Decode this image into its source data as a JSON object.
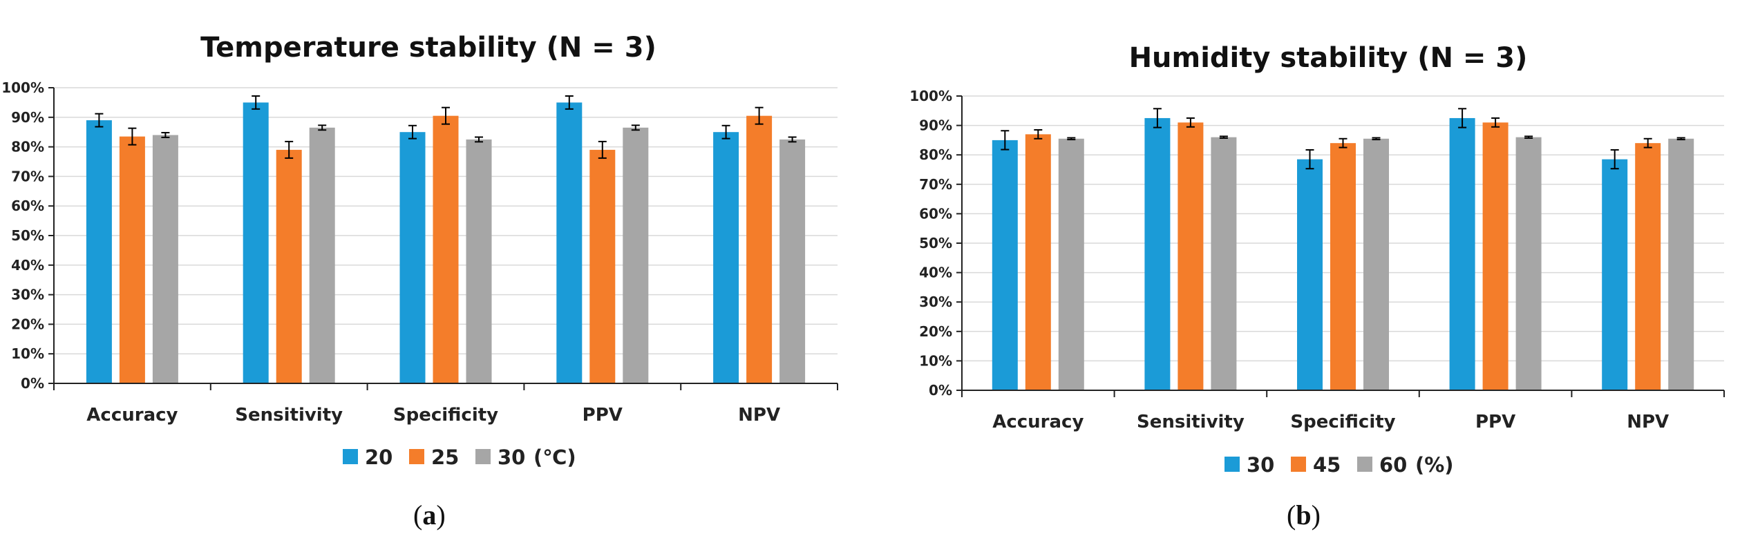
{
  "chart_data": [
    {
      "type": "bar",
      "panel_label": "a",
      "title": "Temperature stability (N = 3)",
      "categories": [
        "Accuracy",
        "Sensitivity",
        "Specificity",
        "PPV",
        "NPV"
      ],
      "series": [
        {
          "name": "20",
          "color": "#1B9BD7",
          "values": [
            89,
            95,
            85,
            95,
            85
          ],
          "errors": [
            2.2,
            2.2,
            2.2,
            2.2,
            2.2
          ]
        },
        {
          "name": "25",
          "color": "#F47D2A",
          "values": [
            83.5,
            79,
            90.5,
            79,
            90.5
          ],
          "errors": [
            2.8,
            2.8,
            2.8,
            2.8,
            2.8
          ]
        },
        {
          "name": "30",
          "color": "#A6A6A6",
          "values": [
            84,
            86.5,
            82.5,
            86.5,
            82.5
          ],
          "errors": [
            0.8,
            0.8,
            0.8,
            0.8,
            0.8
          ]
        }
      ],
      "legend_unit": "(℃)",
      "ylim": [
        0,
        100
      ],
      "yticks": [
        "0%",
        "10%",
        "20%",
        "30%",
        "40%",
        "50%",
        "60%",
        "70%",
        "80%",
        "90%",
        "100%"
      ],
      "grid": true,
      "legend_position": "bottom"
    },
    {
      "type": "bar",
      "panel_label": "b",
      "title": "Humidity stability (N = 3)",
      "categories": [
        "Accuracy",
        "Sensitivity",
        "Specificity",
        "PPV",
        "NPV"
      ],
      "series": [
        {
          "name": "30",
          "color": "#1B9BD7",
          "values": [
            85,
            92.5,
            78.5,
            92.5,
            78.5
          ],
          "errors": [
            3.2,
            3.2,
            3.2,
            3.2,
            3.2
          ]
        },
        {
          "name": "45",
          "color": "#F47D2A",
          "values": [
            87,
            91,
            84,
            91,
            84
          ],
          "errors": [
            1.5,
            1.5,
            1.5,
            1.5,
            1.5
          ]
        },
        {
          "name": "60",
          "color": "#A6A6A6",
          "values": [
            85.5,
            86,
            85.5,
            86,
            85.5
          ],
          "errors": [
            0.3,
            0.3,
            0.3,
            0.3,
            0.3
          ]
        }
      ],
      "legend_unit": "(%)",
      "ylim": [
        0,
        100
      ],
      "yticks": [
        "0%",
        "10%",
        "20%",
        "30%",
        "40%",
        "50%",
        "60%",
        "70%",
        "80%",
        "90%",
        "100%"
      ],
      "grid": true,
      "legend_position": "bottom"
    }
  ]
}
